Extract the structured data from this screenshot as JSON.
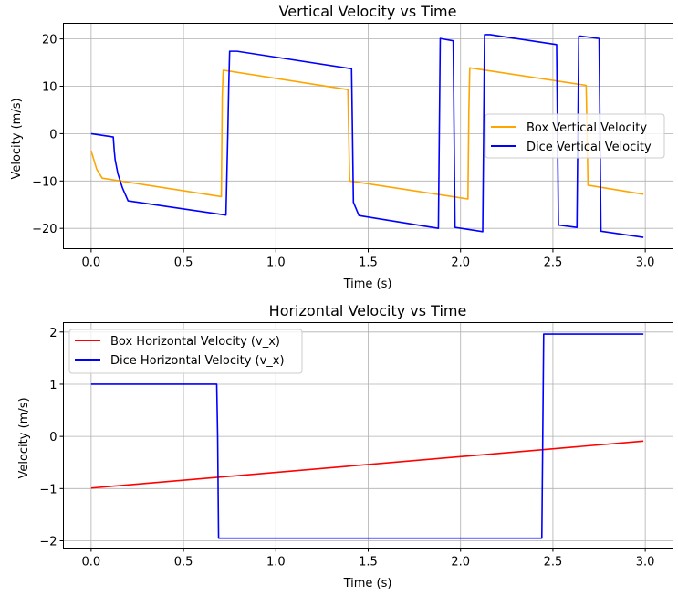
{
  "chart_data": [
    {
      "type": "line",
      "title": "Vertical Velocity vs Time",
      "xlabel": "Time (s)",
      "ylabel": "Velocity (m/s)",
      "xlim": [
        -0.15,
        3.15
      ],
      "ylim": [
        -24.3,
        23.3
      ],
      "xticks": [
        0.0,
        0.5,
        1.0,
        1.5,
        2.0,
        2.5,
        3.0
      ],
      "xtick_labels": [
        "0.0",
        "0.5",
        "1.0",
        "1.5",
        "2.0",
        "2.5",
        "3.0"
      ],
      "yticks": [
        -20,
        -10,
        0,
        10,
        20
      ],
      "ytick_labels": [
        "−20",
        "−10",
        "0",
        "10",
        "20"
      ],
      "grid": true,
      "legend_position": "center-right",
      "series": [
        {
          "name": "Box Vertical Velocity",
          "color": "#ffa500",
          "x": [
            0.0,
            0.03,
            0.06,
            0.705,
            0.71,
            0.715,
            1.39,
            1.395,
            1.4,
            2.04,
            2.045,
            2.05,
            2.68,
            2.685,
            2.69,
            2.99
          ],
          "y": [
            -3.6,
            -7.5,
            -9.4,
            -13.3,
            8.0,
            13.4,
            9.3,
            -1.0,
            -10.0,
            -13.8,
            5.0,
            13.9,
            10.2,
            0.0,
            -10.9,
            -12.8
          ]
        },
        {
          "name": "Dice Vertical Velocity",
          "color": "#0000ff",
          "x": [
            0.0,
            0.12,
            0.125,
            0.13,
            0.145,
            0.17,
            0.2,
            0.73,
            0.74,
            0.745,
            0.75,
            0.79,
            1.41,
            1.415,
            1.42,
            1.45,
            1.88,
            1.885,
            1.89,
            1.96,
            1.965,
            1.97,
            2.12,
            2.125,
            2.13,
            2.16,
            2.52,
            2.525,
            2.53,
            2.63,
            2.635,
            2.64,
            2.65,
            2.75,
            2.755,
            2.76,
            2.99
          ],
          "y": [
            0.0,
            -0.7,
            -3.5,
            -5.5,
            -8.5,
            -11.5,
            -14.2,
            -17.2,
            0.0,
            10.0,
            17.4,
            17.4,
            13.7,
            0.0,
            -14.5,
            -17.3,
            -20.0,
            0.0,
            20.1,
            19.6,
            0.0,
            -19.8,
            -20.7,
            0.0,
            20.9,
            20.9,
            18.8,
            0.0,
            -19.3,
            -19.8,
            0.0,
            20.6,
            20.6,
            20.1,
            0.0,
            -20.6,
            -21.9
          ]
        }
      ]
    },
    {
      "type": "line",
      "title": "Horizontal Velocity vs Time",
      "xlabel": "Time (s)",
      "ylabel": "Velocity (m/s)",
      "xlim": [
        -0.15,
        3.15
      ],
      "ylim": [
        -2.14,
        2.18
      ],
      "xticks": [
        0.0,
        0.5,
        1.0,
        1.5,
        2.0,
        2.5,
        3.0
      ],
      "xtick_labels": [
        "0.0",
        "0.5",
        "1.0",
        "1.5",
        "2.0",
        "2.5",
        "3.0"
      ],
      "yticks": [
        -2,
        -1,
        0,
        1,
        2
      ],
      "ytick_labels": [
        "−2",
        "−1",
        "0",
        "1",
        "2"
      ],
      "grid": true,
      "legend_position": "upper-left",
      "series": [
        {
          "name": "Box Horizontal Velocity (v_x)",
          "color": "#ff0000",
          "x": [
            0.0,
            2.99
          ],
          "y": [
            -0.99,
            -0.09
          ]
        },
        {
          "name": "Dice Horizontal Velocity (v_x)",
          "color": "#0000ff",
          "x": [
            0.0,
            0.68,
            0.685,
            0.69,
            2.44,
            2.445,
            2.45,
            2.99
          ],
          "y": [
            1.0,
            1.0,
            0.0,
            -1.95,
            -1.95,
            0.0,
            1.96,
            1.96
          ]
        }
      ]
    }
  ]
}
